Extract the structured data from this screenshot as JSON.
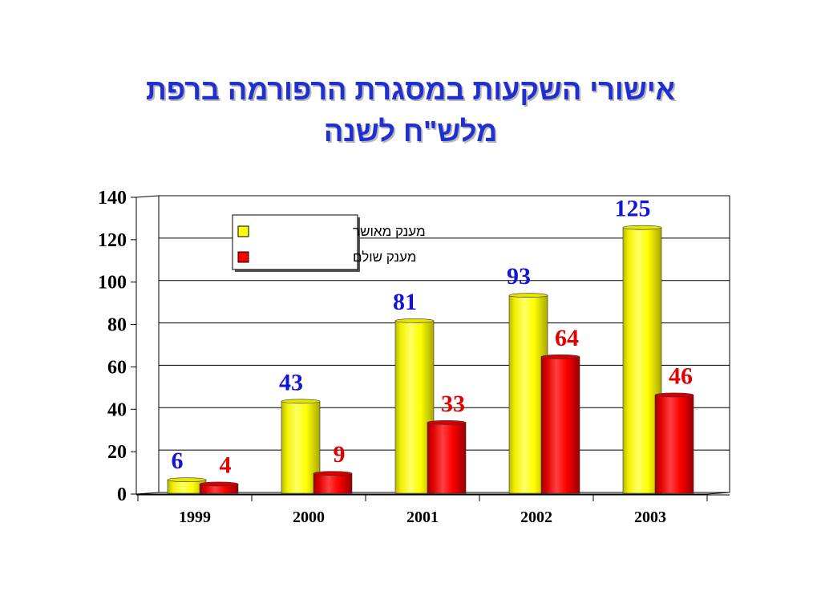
{
  "title": {
    "line1": "אישורי השקעות במסגרת הרפורמה ברפת",
    "line2": "מלש\"ח לשנה"
  },
  "colors": {
    "title": "#1f2fd0",
    "approved": "#ffff00",
    "paid": "#ff0000",
    "approved_label": "#1414d8",
    "paid_label": "#e00000"
  },
  "chart_data": {
    "type": "bar",
    "categories": [
      "1999",
      "2000",
      "2001",
      "2002",
      "2003"
    ],
    "series": [
      {
        "name": "מענק מאושר",
        "values": [
          6,
          43,
          81,
          93,
          125
        ],
        "color": "#ffff00"
      },
      {
        "name": "מענק שולם",
        "values": [
          4,
          9,
          33,
          64,
          46
        ],
        "color": "#ff0000"
      }
    ],
    "ylim": [
      0,
      140
    ],
    "yticks": [
      0,
      20,
      40,
      60,
      80,
      100,
      120,
      140
    ],
    "grid": true,
    "legend_position": "top-left",
    "style": "3d-cylinder"
  }
}
